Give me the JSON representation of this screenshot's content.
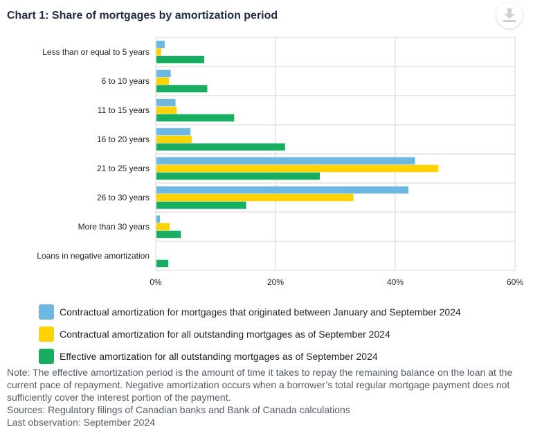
{
  "title": "Chart 1: Share of mortgages by amortization period",
  "download_icon": "download-icon",
  "colors": {
    "series": [
      "#6cb8e0",
      "#ffd200",
      "#17ae62"
    ],
    "grid": "#d4d4d4",
    "axis_text": "#222222"
  },
  "chart_data": {
    "type": "bar",
    "orientation": "horizontal",
    "title": "Chart 1: Share of mortgages by amortization period",
    "xlabel": "",
    "ylabel": "",
    "xlim": [
      0,
      60
    ],
    "x_ticks": [
      "0%",
      "20%",
      "40%",
      "60%"
    ],
    "grid": true,
    "legend_position": "bottom",
    "categories": [
      "Less than or equal to 5 years",
      "6 to 10 years",
      "11 to 15 years",
      "16 to 20 years",
      "21 to 25 years",
      "26 to 30 years",
      "More than 30 years",
      "Loans in negative amortization"
    ],
    "series": [
      {
        "name": "Contractual amortization for mortgages that originated between January and September 2024",
        "values": [
          1.5,
          2.5,
          3.3,
          5.8,
          43.3,
          42.2,
          0.7,
          null
        ]
      },
      {
        "name": "Contractual amortization for all outstanding mortgages as of September 2024",
        "values": [
          0.9,
          2.2,
          3.5,
          6.0,
          47.2,
          33.0,
          2.3,
          null
        ]
      },
      {
        "name": "Effective amortization for all outstanding mortgages as of September 2024",
        "values": [
          8.1,
          8.6,
          13.1,
          21.6,
          27.4,
          15.1,
          4.2,
          2.1
        ]
      }
    ]
  },
  "notes": {
    "note": "Note: The effective amortization period is the amount of time it takes to repay the remaining balance on the loan at the current pace of repayment. Negative amortization occurs when a borrower’s total regular mortgage payment does not sufficiently cover the interest portion of the payment.",
    "sources": "Sources: Regulatory filings of Canadian banks and Bank of Canada calculations",
    "last_observation": "Last observation: September 2024"
  }
}
